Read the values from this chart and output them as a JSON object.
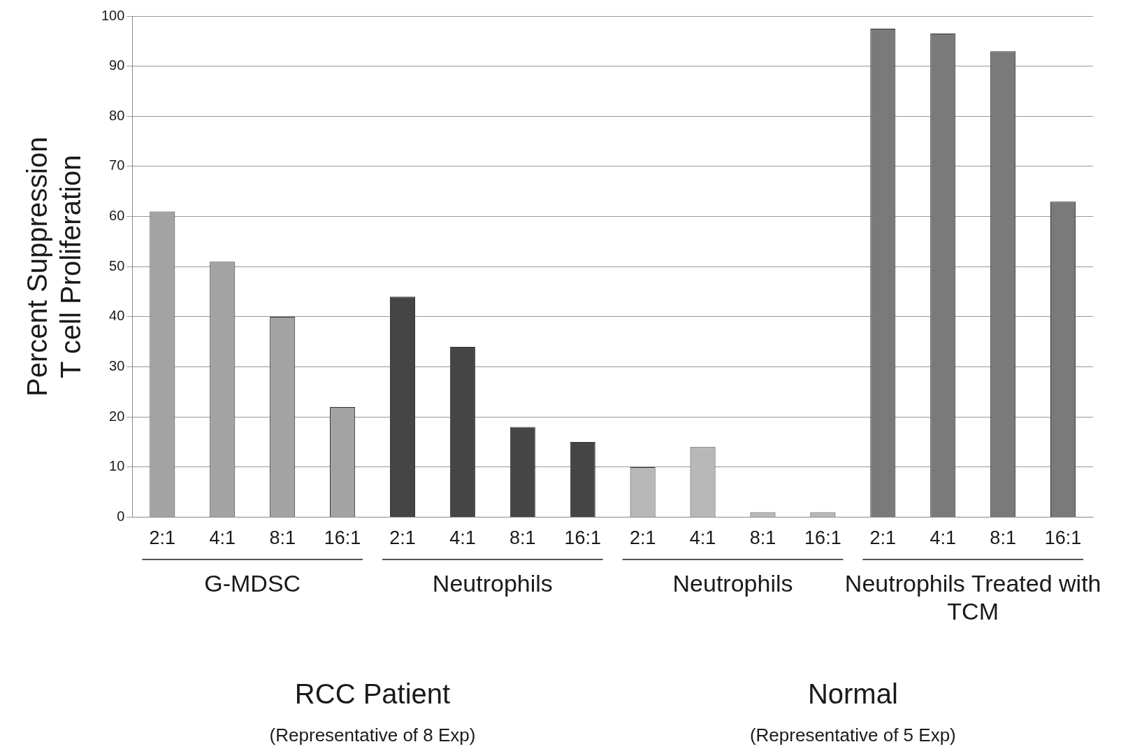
{
  "chart_data": {
    "type": "bar",
    "ylabel": "Percent Suppression\nT cell Proliferation",
    "categories": [
      "2:1",
      "4:1",
      "8:1",
      "16:1",
      "2:1",
      "4:1",
      "8:1",
      "16:1",
      "2:1",
      "4:1",
      "8:1",
      "16:1",
      "2:1",
      "4:1",
      "8:1",
      "16:1"
    ],
    "values": [
      61,
      51,
      40,
      22,
      44,
      34,
      18,
      15,
      10,
      14,
      1,
      1,
      97.5,
      96.5,
      93,
      63
    ],
    "colors": [
      "#a3a3a3",
      "#a3a3a3",
      "#a3a3a3",
      "#a3a3a3",
      "#454545",
      "#454545",
      "#454545",
      "#454545",
      "#b8b8b8",
      "#b8b8b8",
      "#b8b8b8",
      "#b8b8b8",
      "#7a7a7a",
      "#7a7a7a",
      "#7a7a7a",
      "#7a7a7a"
    ],
    "ylim": [
      0,
      100
    ],
    "yticks": [
      0,
      10,
      20,
      30,
      40,
      50,
      60,
      70,
      80,
      90,
      100
    ],
    "grid": "y",
    "legend": false,
    "annotations": [
      "G-MDSC",
      "Neutrophils",
      "Neutrophils",
      "Neutrophils Treated with TCM",
      "RCC Patient",
      "(Representative of 8 Exp)",
      "Normal",
      "(Representative of 5 Exp)"
    ]
  }
}
